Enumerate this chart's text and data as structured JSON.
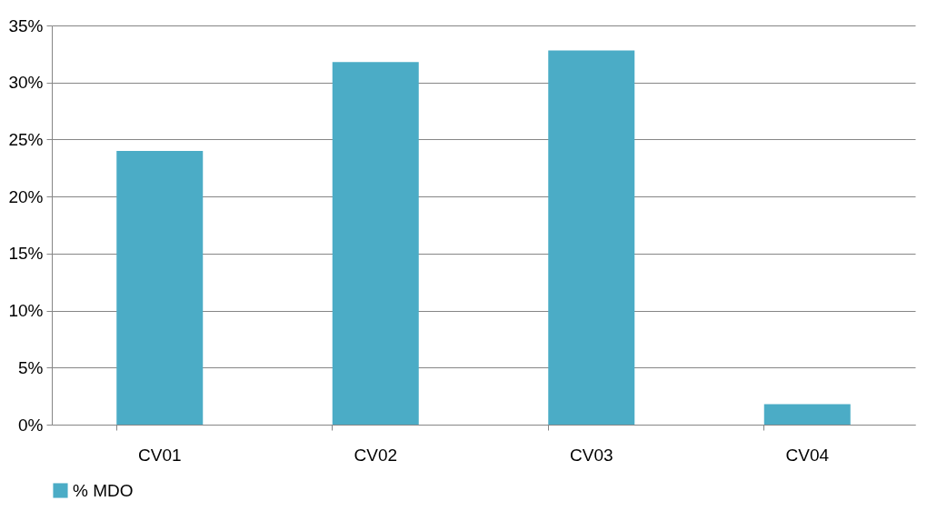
{
  "chart_data": {
    "type": "bar",
    "categories": [
      "CV01",
      "CV02",
      "CV03",
      "CV04"
    ],
    "series": [
      {
        "name": "% MDO",
        "color": "#4bacc6",
        "values": [
          24.0,
          31.8,
          32.8,
          1.8
        ]
      }
    ],
    "ylim": [
      0,
      35
    ],
    "yticks": [
      {
        "value": 0,
        "label": "0%"
      },
      {
        "value": 5,
        "label": "5%"
      },
      {
        "value": 10,
        "label": "10%"
      },
      {
        "value": 15,
        "label": "15%"
      },
      {
        "value": 20,
        "label": "20%"
      },
      {
        "value": 25,
        "label": "25%"
      },
      {
        "value": 30,
        "label": "30%"
      },
      {
        "value": 35,
        "label": "35%"
      }
    ],
    "grid": "y",
    "legend": "bottom"
  }
}
